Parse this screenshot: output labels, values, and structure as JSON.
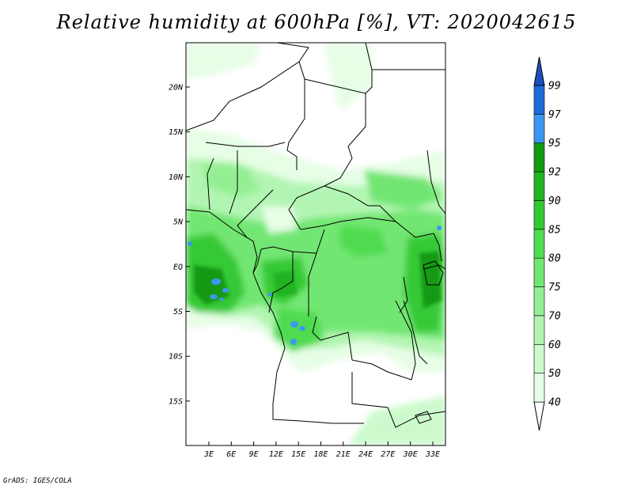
{
  "title": "Relative humidity at 600hPa [%], VT: 2020042615",
  "credit": "GrADS: IGES/COLA",
  "map": {
    "lat_ticks": [
      "20N",
      "15N",
      "10N",
      "5N",
      "EQ",
      "5S",
      "10S",
      "15S"
    ],
    "lon_ticks": [
      "3E",
      "6E",
      "9E",
      "12E",
      "15E",
      "18E",
      "21E",
      "24E",
      "27E",
      "30E",
      "33E"
    ]
  },
  "colorbar": {
    "levels": [
      "40",
      "50",
      "60",
      "70",
      "75",
      "80",
      "85",
      "90",
      "92",
      "95",
      "97",
      "99"
    ],
    "colors": [
      "#ffffff",
      "#e6fde6",
      "#cdfacd",
      "#b2f5b2",
      "#94ef94",
      "#72e672",
      "#50db50",
      "#34c934",
      "#22b322",
      "#149a14",
      "#3d97f0",
      "#1e6ad8",
      "#1a4fbf"
    ]
  }
}
